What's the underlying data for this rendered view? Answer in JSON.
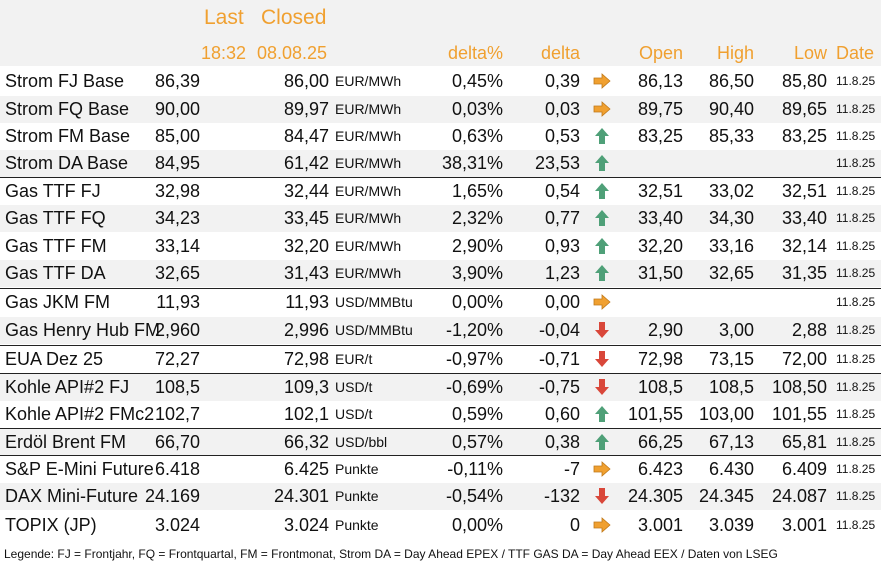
{
  "header": {
    "last": "Last",
    "closed": "Closed",
    "last_time": "18:32",
    "closed_date": "08.08.25",
    "delta_pct": "delta%",
    "delta": "delta",
    "open": "Open",
    "high": "High",
    "low": "Low",
    "date": "Date"
  },
  "colors": {
    "header_text": "#f0a030",
    "arrow_up": "#4fa078",
    "arrow_down": "#d9473a",
    "arrow_flat": "#f0a030",
    "stripe": "#f2f2f2"
  },
  "rows": [
    {
      "name": "Strom FJ Base",
      "last": "86,39",
      "closed": "86,00",
      "unit": "EUR/MWh",
      "delta_pct": "0,45%",
      "delta": "0,39",
      "trend": "flat",
      "trend_icon": "arrow-right-icon",
      "open": "86,13",
      "high": "86,50",
      "low": "85,80",
      "date": "11.8.25"
    },
    {
      "name": "Strom FQ Base",
      "last": "90,00",
      "closed": "89,97",
      "unit": "EUR/MWh",
      "delta_pct": "0,03%",
      "delta": "0,03",
      "trend": "flat",
      "trend_icon": "arrow-right-icon",
      "open": "89,75",
      "high": "90,40",
      "low": "89,65",
      "date": "11.8.25"
    },
    {
      "name": "Strom FM Base",
      "last": "85,00",
      "closed": "84,47",
      "unit": "EUR/MWh",
      "delta_pct": "0,63%",
      "delta": "0,53",
      "trend": "up",
      "trend_icon": "arrow-up-icon",
      "open": "83,25",
      "high": "85,33",
      "low": "83,25",
      "date": "11.8.25"
    },
    {
      "name": "Strom DA Base",
      "last": "84,95",
      "closed": "61,42",
      "unit": "EUR/MWh",
      "delta_pct": "38,31%",
      "delta": "23,53",
      "trend": "up",
      "trend_icon": "arrow-up-icon",
      "open": "",
      "high": "",
      "low": "",
      "date": "11.8.25"
    },
    {
      "name": "Gas TTF FJ",
      "last": "32,98",
      "closed": "32,44",
      "unit": "EUR/MWh",
      "delta_pct": "1,65%",
      "delta": "0,54",
      "trend": "up",
      "trend_icon": "arrow-up-icon",
      "open": "32,51",
      "high": "33,02",
      "low": "32,51",
      "date": "11.8.25"
    },
    {
      "name": "Gas TTF FQ",
      "last": "34,23",
      "closed": "33,45",
      "unit": "EUR/MWh",
      "delta_pct": "2,32%",
      "delta": "0,77",
      "trend": "up",
      "trend_icon": "arrow-up-icon",
      "open": "33,40",
      "high": "34,30",
      "low": "33,40",
      "date": "11.8.25"
    },
    {
      "name": "Gas TTF FM",
      "last": "33,14",
      "closed": "32,20",
      "unit": "EUR/MWh",
      "delta_pct": "2,90%",
      "delta": "0,93",
      "trend": "up",
      "trend_icon": "arrow-up-icon",
      "open": "32,20",
      "high": "33,16",
      "low": "32,14",
      "date": "11.8.25"
    },
    {
      "name": "Gas TTF DA",
      "last": "32,65",
      "closed": "31,43",
      "unit": "EUR/MWh",
      "delta_pct": "3,90%",
      "delta": "1,23",
      "trend": "up",
      "trend_icon": "arrow-up-icon",
      "open": "31,50",
      "high": "32,65",
      "low": "31,35",
      "date": "11.8.25"
    },
    {
      "name": "Gas JKM FM",
      "last": "11,93",
      "closed": "11,93",
      "unit": "USD/MMBtu",
      "delta_pct": "0,00%",
      "delta": "0,00",
      "trend": "flat",
      "trend_icon": "arrow-right-icon",
      "open": "",
      "high": "",
      "low": "",
      "date": "11.8.25"
    },
    {
      "name": "Gas Henry Hub FM",
      "last": "2,960",
      "closed": "2,996",
      "unit": "USD/MMBtu",
      "delta_pct": "-1,20%",
      "delta": "-0,04",
      "trend": "down",
      "trend_icon": "arrow-down-icon",
      "open": "2,90",
      "high": "3,00",
      "low": "2,88",
      "date": "11.8.25"
    },
    {
      "name": "EUA Dez 25",
      "last": "72,27",
      "closed": "72,98",
      "unit": "EUR/t",
      "delta_pct": "-0,97%",
      "delta": "-0,71",
      "trend": "down",
      "trend_icon": "arrow-down-icon",
      "open": "72,98",
      "high": "73,15",
      "low": "72,00",
      "date": "11.8.25"
    },
    {
      "name": "Kohle API#2 FJ",
      "last": "108,5",
      "closed": "109,3",
      "unit": "USD/t",
      "delta_pct": "-0,69%",
      "delta": "-0,75",
      "trend": "down",
      "trend_icon": "arrow-down-icon",
      "open": "108,5",
      "high": "108,5",
      "low": "108,50",
      "date": "11.8.25"
    },
    {
      "name": "Kohle API#2 FMc2",
      "last": "102,7",
      "closed": "102,1",
      "unit": "USD/t",
      "delta_pct": "0,59%",
      "delta": "0,60",
      "trend": "up",
      "trend_icon": "arrow-up-icon",
      "open": "101,55",
      "high": "103,00",
      "low": "101,55",
      "date": "11.8.25"
    },
    {
      "name": "Erdöl Brent FM",
      "last": "66,70",
      "closed": "66,32",
      "unit": "USD/bbl",
      "delta_pct": "0,57%",
      "delta": "0,38",
      "trend": "up",
      "trend_icon": "arrow-up-icon",
      "open": "66,25",
      "high": "67,13",
      "low": "65,81",
      "date": "11.8.25"
    },
    {
      "name": "S&P E-Mini Future",
      "last": "6.418",
      "closed": "6.425",
      "unit": "Punkte",
      "delta_pct": "-0,11%",
      "delta": "-7",
      "trend": "flat",
      "trend_icon": "arrow-right-icon",
      "open": "6.423",
      "high": "6.430",
      "low": "6.409",
      "date": "11.8.25"
    },
    {
      "name": "DAX Mini-Future",
      "last": "24.169",
      "closed": "24.301",
      "unit": "Punkte",
      "delta_pct": "-0,54%",
      "delta": "-132",
      "trend": "down",
      "trend_icon": "arrow-down-icon",
      "open": "24.305",
      "high": "24.345",
      "low": "24.087",
      "date": "11.8.25"
    },
    {
      "name": "TOPIX (JP)",
      "last": "3.024",
      "closed": "3.024",
      "unit": "Punkte",
      "delta_pct": "0,00%",
      "delta": "0",
      "trend": "flat",
      "trend_icon": "arrow-right-icon",
      "open": "3.001",
      "high": "3.039",
      "low": "3.001",
      "date": "11.8.25"
    }
  ],
  "legend": "Legende: FJ = Frontjahr, FQ = Frontquartal, FM = Frontmonat, Strom DA = Day Ahead EPEX / TTF GAS DA = Day Ahead EEX / Daten von LSEG"
}
